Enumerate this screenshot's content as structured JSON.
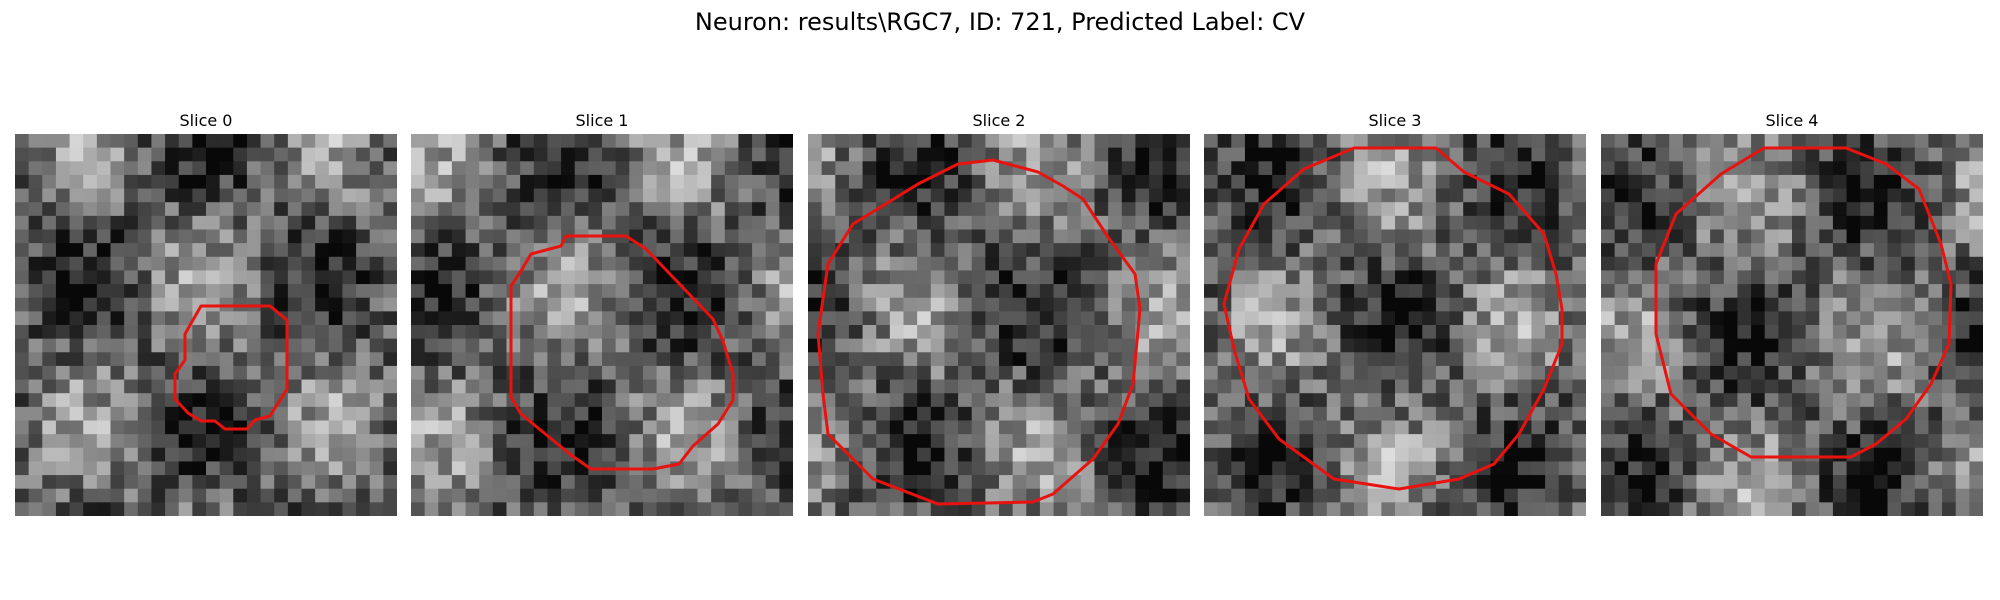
{
  "figure": {
    "title": "Neuron: results\\RGC7, ID: 721, Predicted Label: CV"
  },
  "slices": [
    {
      "title": "Slice 0"
    },
    {
      "title": "Slice 1"
    },
    {
      "title": "Slice 2"
    },
    {
      "title": "Slice 3"
    },
    {
      "title": "Slice 4"
    }
  ],
  "colors": {
    "contour": "#e8120f",
    "background": "#ffffff"
  }
}
